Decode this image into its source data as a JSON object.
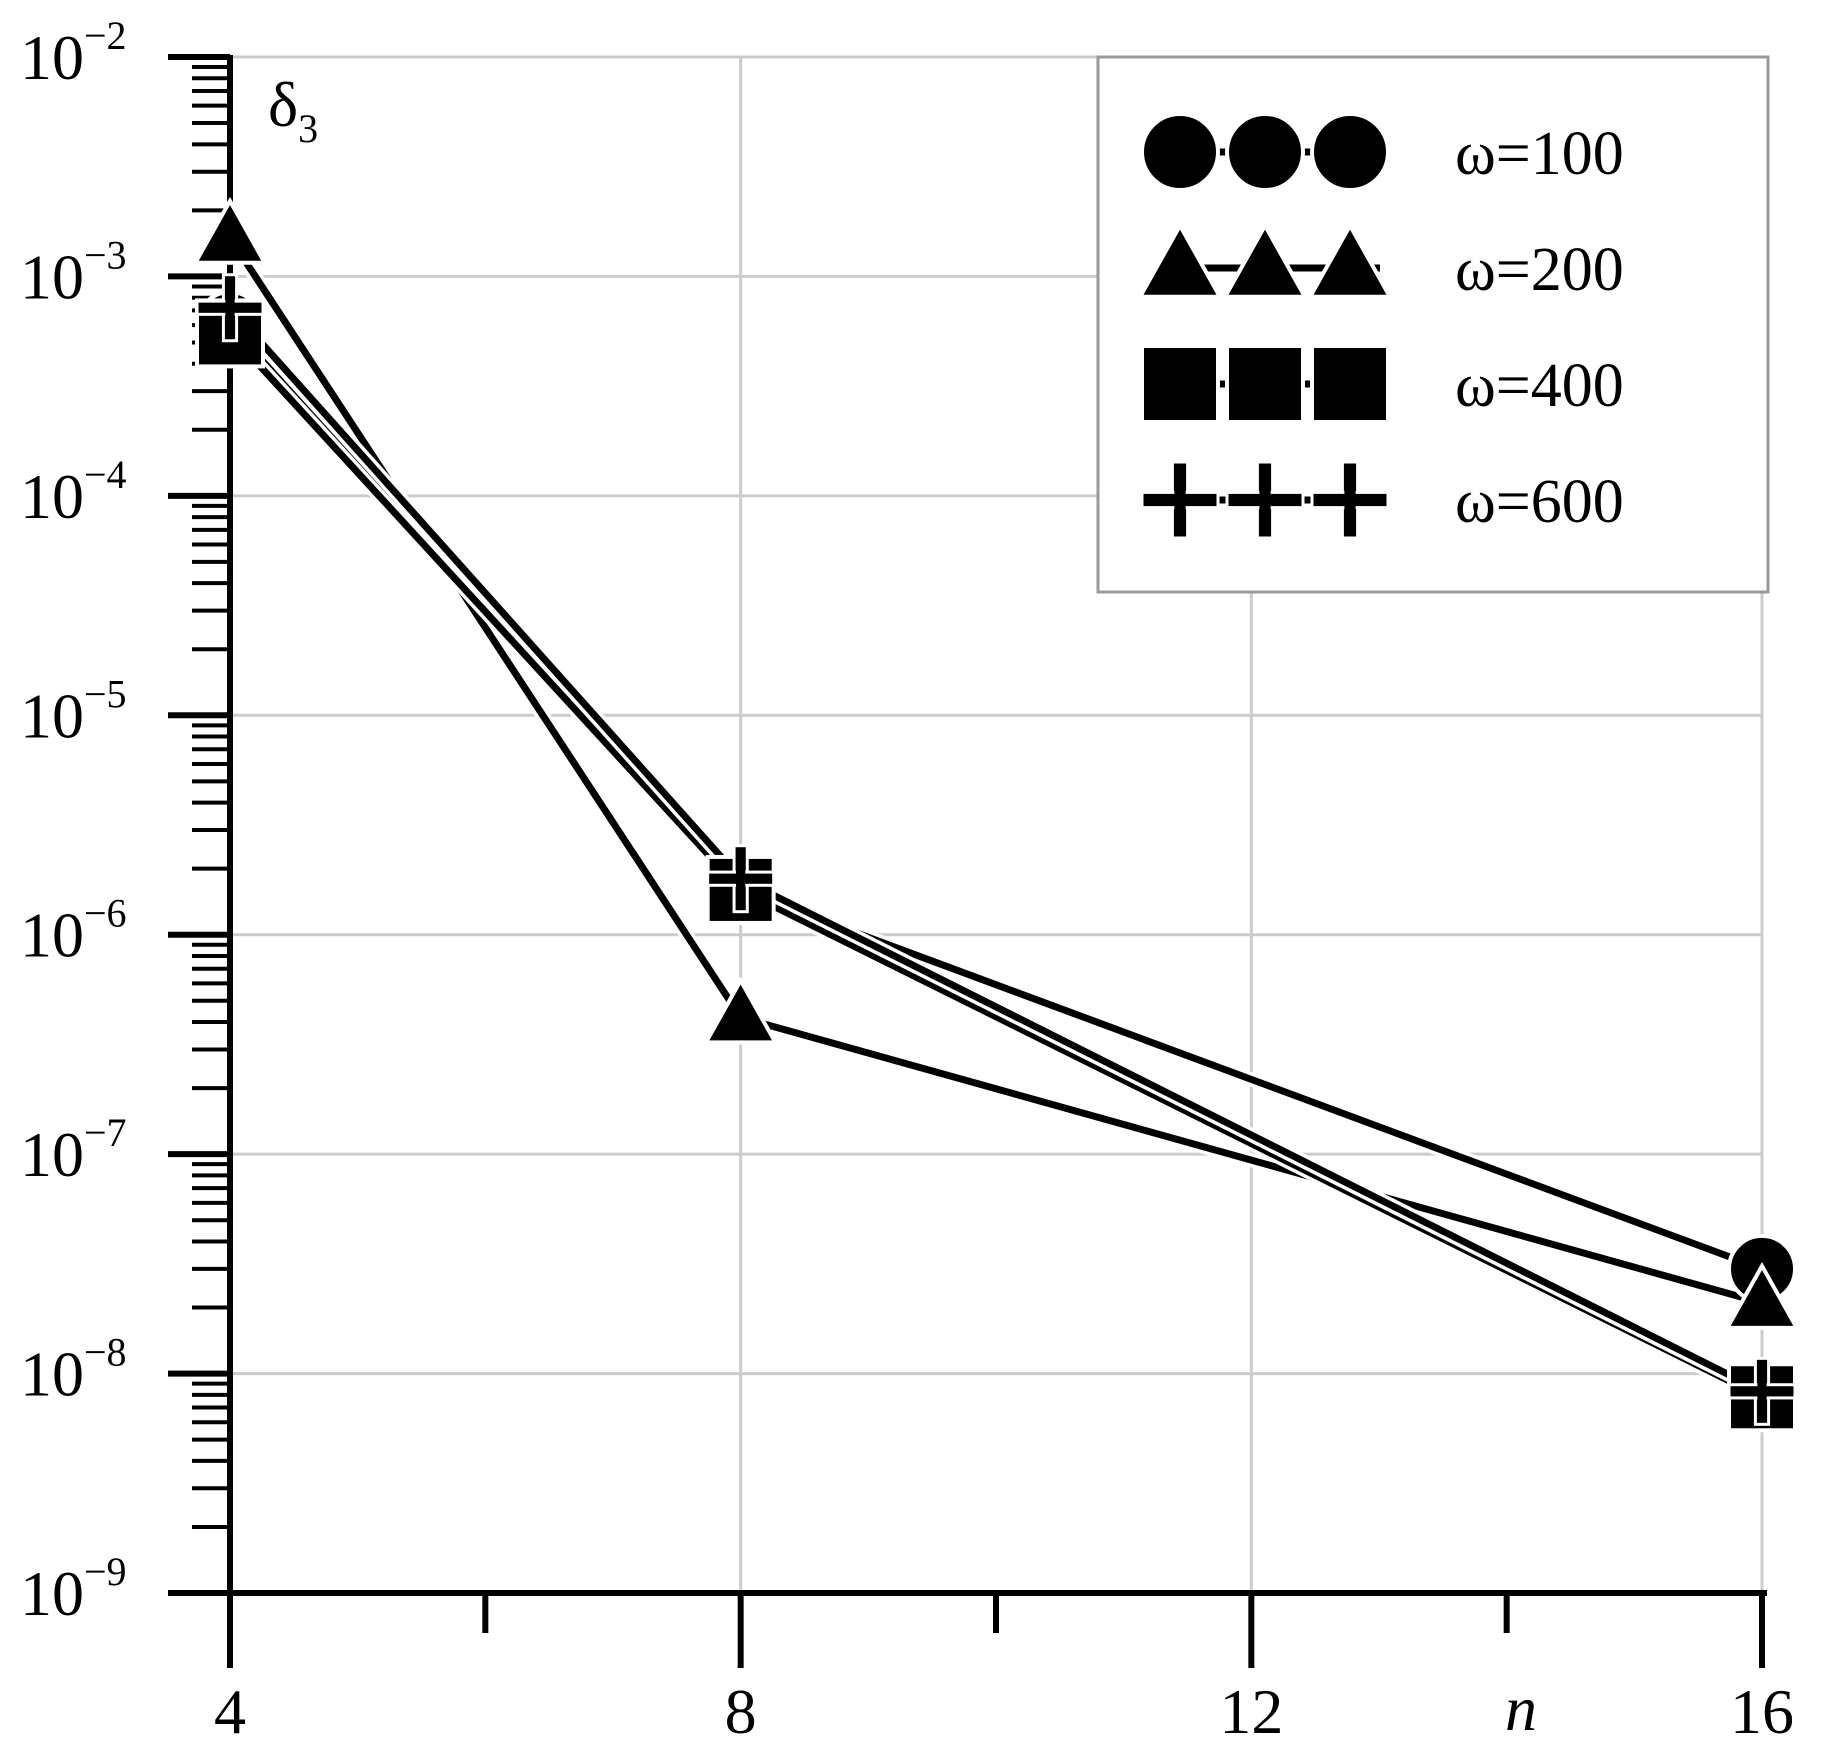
{
  "chart_data": {
    "type": "line",
    "title": "",
    "xlabel": "n",
    "ylabel_main": "δ",
    "ylabel_sub": "3",
    "y_scale": "log",
    "xlim": [
      4,
      16
    ],
    "ylim": [
      1e-09,
      0.01
    ],
    "x_ticks": [
      4,
      8,
      12,
      16
    ],
    "x_tick_labels": [
      "4",
      "8",
      "12",
      "16"
    ],
    "x_minor_ticks": [
      6,
      10,
      14
    ],
    "y_tick_labels": [
      {
        "base": "10",
        "exp": "−9",
        "value": 1e-09
      },
      {
        "base": "10",
        "exp": "−8",
        "value": 1e-08
      },
      {
        "base": "10",
        "exp": "−7",
        "value": 1e-07
      },
      {
        "base": "10",
        "exp": "−6",
        "value": 1e-06
      },
      {
        "base": "10",
        "exp": "−5",
        "value": 1e-05
      },
      {
        "base": "10",
        "exp": "−4",
        "value": 0.0001
      },
      {
        "base": "10",
        "exp": "−3",
        "value": 0.001
      },
      {
        "base": "10",
        "exp": "−2",
        "value": 0.01
      }
    ],
    "grid": true,
    "legend_position": "top-right",
    "x": [
      4,
      8,
      16
    ],
    "series": [
      {
        "name": "ω=100",
        "marker": "circle",
        "values": [
          0.0006,
          1.6e-06,
          3e-08
        ]
      },
      {
        "name": "ω=200",
        "marker": "triangle",
        "values": [
          0.0015,
          4.2e-07,
          2.1e-08
        ]
      },
      {
        "name": "ω=400",
        "marker": "square",
        "values": [
          0.00055,
          1.6e-06,
          7.8e-09
        ]
      },
      {
        "name": "ω=600",
        "marker": "plus",
        "values": [
          0.00072,
          1.8e-06,
          8.3e-09
        ]
      }
    ],
    "colors": {
      "line": "#000000",
      "grid": "#cccccc",
      "legend_border": "#999999"
    }
  }
}
